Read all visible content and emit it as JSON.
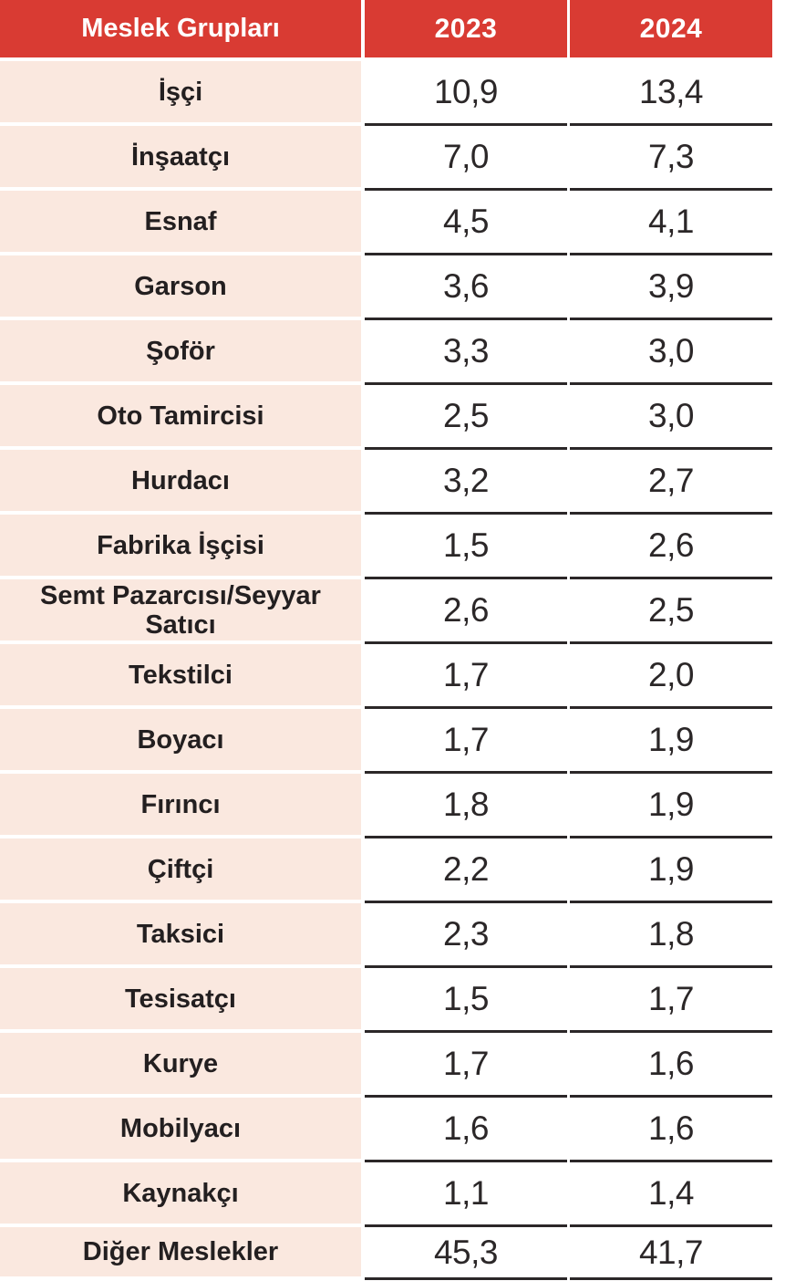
{
  "table": {
    "header": {
      "group": "Meslek Grupları",
      "col_2023": "2023",
      "col_2024": "2024"
    },
    "rows": [
      {
        "label": "İşçi",
        "v2023": "10,9",
        "v2024": "13,4"
      },
      {
        "label": "İnşaatçı",
        "v2023": "7,0",
        "v2024": "7,3"
      },
      {
        "label": "Esnaf",
        "v2023": "4,5",
        "v2024": "4,1"
      },
      {
        "label": "Garson",
        "v2023": "3,6",
        "v2024": "3,9"
      },
      {
        "label": "Şoför",
        "v2023": "3,3",
        "v2024": "3,0"
      },
      {
        "label": "Oto Tamircisi",
        "v2023": "2,5",
        "v2024": "3,0"
      },
      {
        "label": "Hurdacı",
        "v2023": "3,2",
        "v2024": "2,7"
      },
      {
        "label": "Fabrika İşçisi",
        "v2023": "1,5",
        "v2024": "2,6"
      },
      {
        "label": "Semt Pazarcısı/Seyyar Satıcı",
        "v2023": "2,6",
        "v2024": "2,5"
      },
      {
        "label": "Tekstilci",
        "v2023": "1,7",
        "v2024": "2,0"
      },
      {
        "label": "Boyacı",
        "v2023": "1,7",
        "v2024": "1,9"
      },
      {
        "label": "Fırıncı",
        "v2023": "1,8",
        "v2024": "1,9"
      },
      {
        "label": "Çiftçi",
        "v2023": "2,2",
        "v2024": "1,9"
      },
      {
        "label": "Taksici",
        "v2023": "2,3",
        "v2024": "1,8"
      },
      {
        "label": "Tesisatçı",
        "v2023": "1,5",
        "v2024": "1,7"
      },
      {
        "label": "Kurye",
        "v2023": "1,7",
        "v2024": "1,6"
      },
      {
        "label": "Mobilyacı",
        "v2023": "1,6",
        "v2024": "1,6"
      },
      {
        "label": "Kaynakçı",
        "v2023": "1,1",
        "v2024": "1,4"
      },
      {
        "label": "Diğer Meslekler",
        "v2023": "45,3",
        "v2024": "41,7"
      }
    ]
  },
  "colors": {
    "header_bg": "#D93B33",
    "header_text": "#FFFFFF",
    "row_label_bg": "#FAE8DF",
    "text": "#231F20",
    "border": "#2B2728",
    "background": "#FFFFFF"
  },
  "chart_data": {
    "type": "table",
    "columns": [
      "Meslek Grupları",
      "2023",
      "2024"
    ],
    "rows": [
      [
        "İşçi",
        10.9,
        13.4
      ],
      [
        "İnşaatçı",
        7.0,
        7.3
      ],
      [
        "Esnaf",
        4.5,
        4.1
      ],
      [
        "Garson",
        3.6,
        3.9
      ],
      [
        "Şoför",
        3.3,
        3.0
      ],
      [
        "Oto Tamircisi",
        2.5,
        3.0
      ],
      [
        "Hurdacı",
        3.2,
        2.7
      ],
      [
        "Fabrika İşçisi",
        1.5,
        2.6
      ],
      [
        "Semt Pazarcısı/Seyyar Satıcı",
        2.6,
        2.5
      ],
      [
        "Tekstilci",
        1.7,
        2.0
      ],
      [
        "Boyacı",
        1.7,
        1.9
      ],
      [
        "Fırıncı",
        1.8,
        1.9
      ],
      [
        "Çiftçi",
        2.2,
        1.9
      ],
      [
        "Taksici",
        2.3,
        1.8
      ],
      [
        "Tesisatçı",
        1.5,
        1.7
      ],
      [
        "Kurye",
        1.7,
        1.6
      ],
      [
        "Mobilyacı",
        1.6,
        1.6
      ],
      [
        "Kaynakçı",
        1.1,
        1.4
      ],
      [
        "Diğer Meslekler",
        45.3,
        41.7
      ]
    ],
    "note": "decimal comma formatting, Turkish locale",
    "legend_position": "none",
    "grid": "horizontal rules between data rows"
  }
}
